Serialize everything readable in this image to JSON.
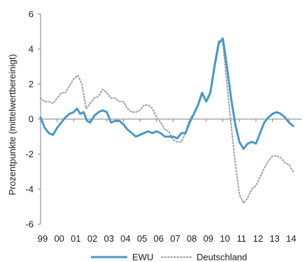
{
  "chart_data": {
    "type": "line",
    "ylabel": "Prozentpunkte (mittelwertbereinigt)",
    "xlabel": "",
    "ylim": [
      -6,
      6
    ],
    "yticks": [
      -6,
      -4,
      -2,
      0,
      2,
      4,
      6
    ],
    "xlim": [
      1999.0,
      2014.75
    ],
    "x_tick_labels": [
      "99",
      "00",
      "01",
      "02",
      "03",
      "04",
      "05",
      "06",
      "07",
      "08",
      "09",
      "10",
      "11",
      "12",
      "13",
      "14"
    ],
    "grid": false,
    "legend_position": "bottom",
    "series": [
      {
        "name": "EWU",
        "color": "#4a97c2",
        "style": "solid",
        "points": [
          [
            1999.0,
            0.1
          ],
          [
            1999.25,
            -0.5
          ],
          [
            1999.5,
            -0.8
          ],
          [
            1999.75,
            -0.9
          ],
          [
            2000.0,
            -0.5
          ],
          [
            2000.25,
            -0.2
          ],
          [
            2000.5,
            0.1
          ],
          [
            2000.75,
            0.3
          ],
          [
            2001.0,
            0.4
          ],
          [
            2001.2,
            0.6
          ],
          [
            2001.4,
            0.3
          ],
          [
            2001.6,
            0.4
          ],
          [
            2001.8,
            -0.1
          ],
          [
            2002.0,
            -0.2
          ],
          [
            2002.25,
            0.2
          ],
          [
            2002.5,
            0.4
          ],
          [
            2002.75,
            0.5
          ],
          [
            2003.0,
            0.4
          ],
          [
            2003.25,
            -0.2
          ],
          [
            2003.5,
            -0.1
          ],
          [
            2003.75,
            -0.1
          ],
          [
            2004.0,
            -0.3
          ],
          [
            2004.25,
            -0.6
          ],
          [
            2004.5,
            -0.8
          ],
          [
            2004.75,
            -1.0
          ],
          [
            2005.0,
            -0.9
          ],
          [
            2005.25,
            -0.8
          ],
          [
            2005.5,
            -0.7
          ],
          [
            2005.75,
            -0.8
          ],
          [
            2006.0,
            -0.7
          ],
          [
            2006.25,
            -0.8
          ],
          [
            2006.5,
            -1.0
          ],
          [
            2006.75,
            -1.0
          ],
          [
            2007.0,
            -1.0
          ],
          [
            2007.25,
            -1.1
          ],
          [
            2007.5,
            -0.8
          ],
          [
            2007.75,
            -0.8
          ],
          [
            2008.0,
            -0.2
          ],
          [
            2008.25,
            0.3
          ],
          [
            2008.5,
            0.8
          ],
          [
            2008.75,
            1.5
          ],
          [
            2009.0,
            1.0
          ],
          [
            2009.25,
            1.5
          ],
          [
            2009.5,
            3.0
          ],
          [
            2009.75,
            4.3
          ],
          [
            2010.0,
            4.6
          ],
          [
            2010.25,
            3.0
          ],
          [
            2010.5,
            1.2
          ],
          [
            2010.75,
            -0.3
          ],
          [
            2011.0,
            -1.3
          ],
          [
            2011.25,
            -1.7
          ],
          [
            2011.5,
            -1.4
          ],
          [
            2011.75,
            -1.3
          ],
          [
            2012.0,
            -1.4
          ],
          [
            2012.25,
            -0.8
          ],
          [
            2012.5,
            -0.2
          ],
          [
            2012.75,
            0.1
          ],
          [
            2013.0,
            0.3
          ],
          [
            2013.25,
            0.4
          ],
          [
            2013.5,
            0.3
          ],
          [
            2013.75,
            0.1
          ],
          [
            2014.0,
            -0.2
          ],
          [
            2014.25,
            -0.4
          ]
        ]
      },
      {
        "name": "Deutschland",
        "color": "#a6a6a6",
        "style": "dotted",
        "points": [
          [
            1999.0,
            1.2
          ],
          [
            1999.25,
            1.0
          ],
          [
            1999.5,
            1.0
          ],
          [
            1999.75,
            0.9
          ],
          [
            2000.0,
            1.2
          ],
          [
            2000.25,
            1.5
          ],
          [
            2000.5,
            1.5
          ],
          [
            2000.75,
            1.9
          ],
          [
            2001.0,
            2.3
          ],
          [
            2001.25,
            2.5
          ],
          [
            2001.5,
            2.0
          ],
          [
            2001.75,
            0.6
          ],
          [
            2002.0,
            0.9
          ],
          [
            2002.25,
            1.2
          ],
          [
            2002.5,
            1.3
          ],
          [
            2002.75,
            1.7
          ],
          [
            2003.0,
            1.5
          ],
          [
            2003.25,
            1.2
          ],
          [
            2003.5,
            1.2
          ],
          [
            2003.75,
            1.0
          ],
          [
            2004.0,
            1.0
          ],
          [
            2004.25,
            0.6
          ],
          [
            2004.5,
            0.4
          ],
          [
            2004.75,
            0.4
          ],
          [
            2005.0,
            0.5
          ],
          [
            2005.25,
            0.8
          ],
          [
            2005.5,
            0.8
          ],
          [
            2005.75,
            0.6
          ],
          [
            2006.0,
            0.1
          ],
          [
            2006.25,
            -0.2
          ],
          [
            2006.5,
            -0.6
          ],
          [
            2006.75,
            -0.7
          ],
          [
            2007.0,
            -1.2
          ],
          [
            2007.25,
            -1.3
          ],
          [
            2007.5,
            -1.3
          ],
          [
            2007.75,
            -0.8
          ],
          [
            2008.0,
            0.0
          ],
          [
            2008.25,
            0.3
          ],
          [
            2008.5,
            0.8
          ],
          [
            2008.75,
            1.5
          ],
          [
            2009.0,
            1.0
          ],
          [
            2009.25,
            1.6
          ],
          [
            2009.5,
            3.2
          ],
          [
            2009.75,
            4.5
          ],
          [
            2010.0,
            4.4
          ],
          [
            2010.25,
            2.0
          ],
          [
            2010.5,
            -0.3
          ],
          [
            2010.75,
            -2.5
          ],
          [
            2011.0,
            -4.3
          ],
          [
            2011.25,
            -4.8
          ],
          [
            2011.5,
            -4.5
          ],
          [
            2011.75,
            -4.0
          ],
          [
            2012.0,
            -3.8
          ],
          [
            2012.25,
            -3.3
          ],
          [
            2012.5,
            -2.8
          ],
          [
            2012.75,
            -2.4
          ],
          [
            2013.0,
            -2.1
          ],
          [
            2013.25,
            -2.1
          ],
          [
            2013.5,
            -2.2
          ],
          [
            2013.75,
            -2.5
          ],
          [
            2014.0,
            -2.6
          ],
          [
            2014.25,
            -3.0
          ]
        ]
      }
    ]
  }
}
